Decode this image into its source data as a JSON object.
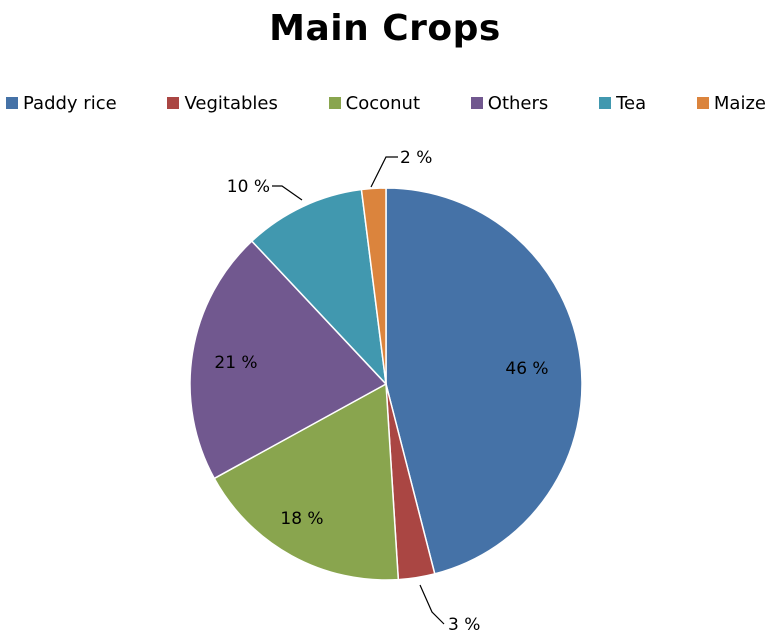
{
  "chart_data": {
    "type": "pie",
    "title": "Main Crops",
    "legend_position": "top",
    "categories": [
      "Paddy rice",
      "Vegitables",
      "Coconut",
      "Others",
      "Tea",
      "Maize"
    ],
    "values": [
      46,
      3,
      18,
      21,
      10,
      2
    ],
    "labels": [
      "46 %",
      "3 %",
      "18 %",
      "21 %",
      "10 %",
      "2 %"
    ],
    "colors": [
      "#4572A7",
      "#AA4643",
      "#89A54E",
      "#71588F",
      "#4198AF",
      "#DB843D"
    ]
  }
}
